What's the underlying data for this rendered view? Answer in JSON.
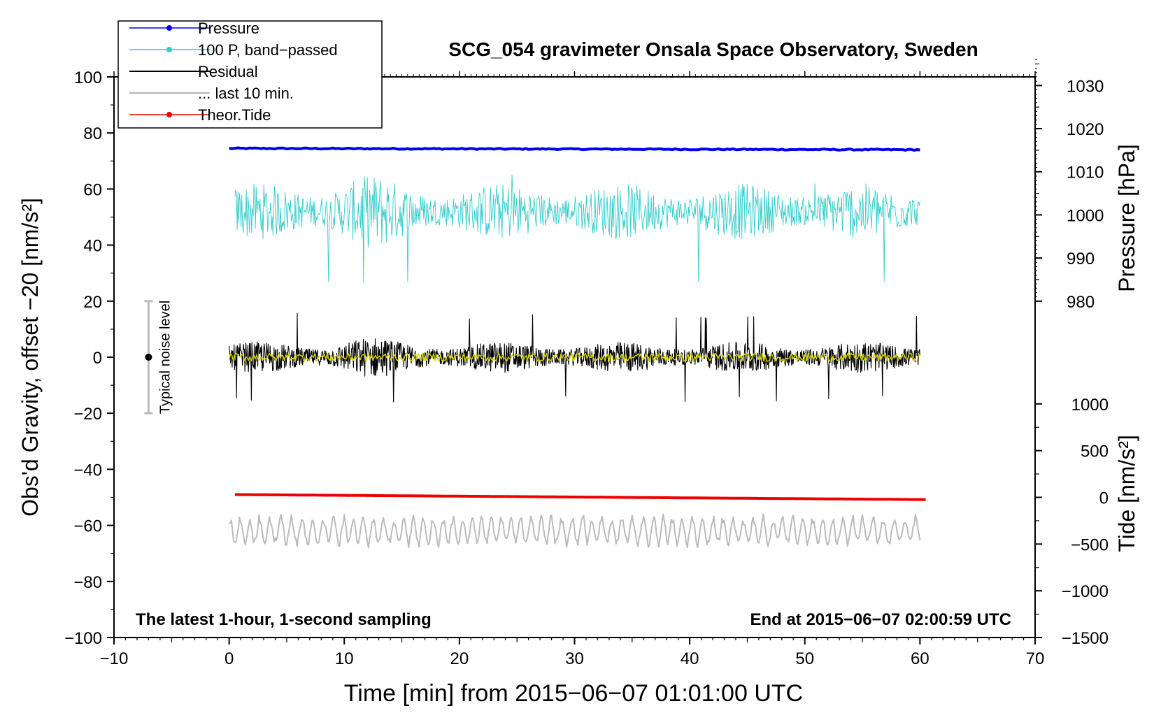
{
  "chart_data": {
    "type": "line",
    "title": "SCG_054 gravimeter Onsala Space Observatory, Sweden",
    "xlabel": "Time [min] from 2015−06−07 01:01:00 UTC",
    "ylabel": "Obs'd Gravity, offset −20 [nm/s²]",
    "ylabel_right_top": "Pressure [hPa]",
    "ylabel_right_bottom": "Tide [nm/s²]",
    "xlim": [
      -10,
      70
    ],
    "ylim": [
      -100,
      100
    ],
    "x_ticks": [
      -10,
      0,
      10,
      20,
      30,
      40,
      50,
      60,
      70
    ],
    "x_tick_labels": [
      "−10",
      "0",
      "10",
      "20",
      "30",
      "40",
      "50",
      "60",
      "70"
    ],
    "y_ticks": [
      -100,
      -80,
      -60,
      -40,
      -20,
      0,
      20,
      40,
      60,
      80,
      100
    ],
    "y_tick_labels": [
      "−100",
      "−80",
      "−60",
      "−40",
      "−20",
      "0",
      "20",
      "40",
      "60",
      "80",
      "100"
    ],
    "pressure_axis": {
      "ticks": [
        980,
        990,
        1000,
        1010,
        1020,
        1030
      ],
      "tick_labels": [
        "980",
        "990",
        "1000",
        "1010",
        "1020",
        "1030"
      ],
      "y_at_980": 20,
      "hpa_per_unit": 0.65
    },
    "tide_axis": {
      "ticks": [
        -1500,
        -1000,
        -500,
        0,
        500,
        1000
      ],
      "tick_labels": [
        "−1500",
        "−1000",
        "−500",
        "0",
        "500",
        "1000"
      ],
      "y_at_zero": -50,
      "nms2_per_unit": 30
    },
    "grid": false,
    "legend_position": "top-left",
    "legend": [
      {
        "label": "Pressure",
        "color": "#0000ee",
        "marker": true
      },
      {
        "label": "100 P, band−passed",
        "color": "#33cccc",
        "marker": true
      },
      {
        "label": "Residual",
        "color": "#000000",
        "marker": false
      },
      {
        "label": "... last 10 min.",
        "color": "#bbbbbb",
        "marker": false
      },
      {
        "label": "Theor.Tide",
        "color": "#ee0000",
        "marker": true
      }
    ],
    "series": [
      {
        "name": "Pressure",
        "color": "#0000ee",
        "x_range": [
          0,
          60
        ],
        "start": 74.5,
        "end": 74.0,
        "noise_amplitude": 0.4,
        "kind": "flat"
      },
      {
        "name": "100 P, band−passed",
        "color": "#33cccc",
        "x_range": [
          0.5,
          60
        ],
        "center": 52,
        "noise_amplitude": 10,
        "extremes": [
          27,
          66
        ],
        "kind": "noisy"
      },
      {
        "name": "Residual",
        "color": "#000000",
        "x_range": [
          0,
          60
        ],
        "center": 0,
        "noise_amplitude": 5.5,
        "extremes": [
          -16,
          16
        ],
        "kind": "noisy"
      },
      {
        "name": "Residual smoothed",
        "color": "#d0d000",
        "x_range": [
          0,
          60
        ],
        "center": 0,
        "noise_amplitude": 1.5,
        "kind": "noisy"
      },
      {
        "name": "... last 10 min.",
        "color": "#bbbbbb",
        "x_range": [
          0,
          60
        ],
        "center": -62,
        "noise_amplitude": 5,
        "extremes": [
          -70,
          -53
        ],
        "kind": "wavy"
      },
      {
        "name": "Theor.Tide",
        "color": "#ee0000",
        "x_range": [
          0.5,
          60.5
        ],
        "start": -49,
        "end": -50.8,
        "kind": "flat"
      }
    ],
    "noise_bar": {
      "label": "Typical noise level",
      "x": -7,
      "y_center": 0,
      "y_low": -20,
      "y_high": 20
    },
    "annotations": {
      "bottom_left": "The latest 1-hour, 1-second sampling",
      "bottom_right": "End at 2015−06−07 02:00:59 UTC"
    }
  }
}
